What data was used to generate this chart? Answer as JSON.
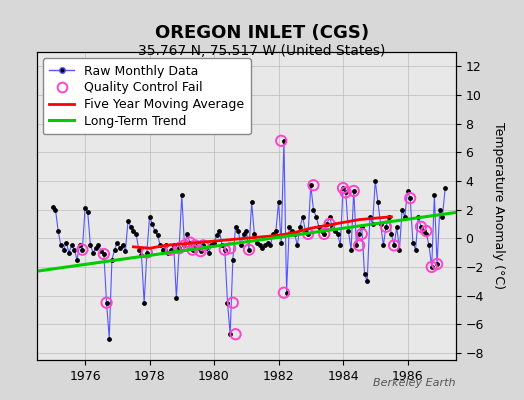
{
  "title": "OREGON INLET (CGS)",
  "subtitle": "35.767 N, 75.517 W (United States)",
  "ylabel_right": "Temperature Anomaly (°C)",
  "xlabel_bottom": "",
  "watermark": "Berkeley Earth",
  "bg_color": "#d8d8d8",
  "plot_bg_color": "#e8e8e8",
  "ylim": [
    -8.5,
    13
  ],
  "yticks": [
    -8,
    -6,
    -4,
    -2,
    0,
    2,
    4,
    6,
    8,
    10,
    12
  ],
  "xlim_start": 1974.5,
  "xlim_end": 1987.5,
  "xticks": [
    1976,
    1978,
    1980,
    1982,
    1984,
    1986
  ],
  "raw_x": [
    1975.0,
    1975.083,
    1975.167,
    1975.25,
    1975.333,
    1975.417,
    1975.5,
    1975.583,
    1975.667,
    1975.75,
    1975.833,
    1975.917,
    1976.0,
    1976.083,
    1976.167,
    1976.25,
    1976.333,
    1976.417,
    1976.5,
    1976.583,
    1976.667,
    1976.75,
    1976.833,
    1976.917,
    1977.0,
    1977.083,
    1977.167,
    1977.25,
    1977.333,
    1977.417,
    1977.5,
    1977.583,
    1977.667,
    1977.75,
    1977.833,
    1977.917,
    1978.0,
    1978.083,
    1978.167,
    1978.25,
    1978.333,
    1978.417,
    1978.5,
    1978.583,
    1978.667,
    1978.75,
    1978.833,
    1978.917,
    1979.0,
    1979.083,
    1979.167,
    1979.25,
    1979.333,
    1979.417,
    1979.5,
    1979.583,
    1979.667,
    1979.75,
    1979.833,
    1979.917,
    1980.0,
    1980.083,
    1980.167,
    1980.25,
    1980.333,
    1980.417,
    1980.5,
    1980.583,
    1980.667,
    1980.75,
    1980.833,
    1980.917,
    1981.0,
    1981.083,
    1981.167,
    1981.25,
    1981.333,
    1981.417,
    1981.5,
    1981.583,
    1981.667,
    1981.75,
    1981.833,
    1981.917,
    1982.0,
    1982.083,
    1982.167,
    1982.25,
    1982.333,
    1982.417,
    1982.5,
    1982.583,
    1982.667,
    1982.75,
    1982.833,
    1982.917,
    1983.0,
    1983.083,
    1983.167,
    1983.25,
    1983.333,
    1983.417,
    1983.5,
    1983.583,
    1983.667,
    1983.75,
    1983.833,
    1983.917,
    1984.0,
    1984.083,
    1984.167,
    1984.25,
    1984.333,
    1984.417,
    1984.5,
    1984.583,
    1984.667,
    1984.75,
    1984.833,
    1984.917,
    1985.0,
    1985.083,
    1985.167,
    1985.25,
    1985.333,
    1985.417,
    1985.5,
    1985.583,
    1985.667,
    1985.75,
    1985.833,
    1985.917,
    1986.0,
    1986.083,
    1986.167,
    1986.25,
    1986.333,
    1986.417,
    1986.5,
    1986.583,
    1986.667,
    1986.75,
    1986.833,
    1986.917,
    1987.0,
    1987.083,
    1987.167
  ],
  "raw_y": [
    2.2,
    2.0,
    0.5,
    -0.5,
    -0.8,
    -0.3,
    -1.0,
    -0.5,
    -0.8,
    -1.5,
    -0.5,
    -0.8,
    2.1,
    1.8,
    -0.5,
    -1.0,
    -0.7,
    -0.5,
    -0.9,
    -1.1,
    -4.5,
    -7.0,
    -1.5,
    -0.8,
    -0.3,
    -0.7,
    -0.5,
    -0.9,
    1.2,
    0.8,
    0.5,
    0.3,
    -0.8,
    -1.2,
    -4.5,
    -1.0,
    1.5,
    1.0,
    0.5,
    0.2,
    -0.5,
    -0.8,
    -0.5,
    -1.0,
    -0.8,
    -0.5,
    -4.2,
    -0.7,
    3.0,
    -0.5,
    0.3,
    -0.3,
    -0.8,
    -0.5,
    -0.7,
    -0.9,
    -0.5,
    -0.7,
    -1.0,
    -0.5,
    -0.3,
    0.2,
    0.5,
    -0.5,
    -0.8,
    -4.5,
    -6.7,
    -1.5,
    0.8,
    0.5,
    -0.5,
    0.3,
    0.5,
    -0.8,
    2.5,
    0.3,
    -0.3,
    -0.5,
    -0.7,
    -0.5,
    -0.3,
    -0.5,
    0.3,
    0.5,
    2.5,
    -0.3,
    6.8,
    -3.8,
    0.8,
    0.5,
    0.3,
    -0.5,
    0.8,
    1.5,
    0.5,
    0.3,
    3.7,
    2.0,
    1.5,
    0.8,
    0.5,
    0.3,
    1.0,
    1.5,
    0.8,
    0.5,
    0.3,
    -0.5,
    3.5,
    3.2,
    0.5,
    -0.8,
    3.3,
    -0.5,
    0.3,
    0.8,
    -2.5,
    -3.0,
    1.5,
    1.0,
    4.0,
    2.5,
    1.0,
    -0.5,
    0.8,
    1.5,
    0.3,
    -0.5,
    0.8,
    -0.8,
    2.0,
    1.5,
    3.3,
    2.8,
    -0.3,
    -0.8,
    1.5,
    0.8,
    0.5,
    0.3,
    -0.5,
    -2.0,
    3.0,
    -1.8,
    2.0,
    1.5,
    3.5
  ],
  "qc_fail_x": [
    1975.917,
    1976.583,
    1976.667,
    1977.917,
    1978.667,
    1978.917,
    1979.083,
    1979.25,
    1979.333,
    1979.417,
    1979.583,
    1979.667,
    1980.333,
    1980.5,
    1980.583,
    1980.667,
    1981.083,
    1982.083,
    1982.167,
    1982.917,
    1983.083,
    1983.417,
    1983.583,
    1984.0,
    1984.083,
    1984.333,
    1984.5,
    1984.583,
    1985.333,
    1985.583,
    1986.083,
    1986.417,
    1986.583,
    1986.75,
    1986.917
  ],
  "qc_fail_y": [
    -0.8,
    -1.1,
    -4.5,
    -1.0,
    -0.8,
    -0.7,
    -0.5,
    -0.3,
    -0.8,
    -0.5,
    -0.9,
    -0.5,
    -0.8,
    -0.7,
    -4.5,
    -6.7,
    -0.8,
    6.8,
    -3.8,
    0.3,
    3.7,
    0.3,
    1.0,
    3.5,
    3.2,
    3.3,
    -0.5,
    0.3,
    0.8,
    -0.5,
    2.8,
    0.8,
    0.5,
    -2.0,
    -1.8
  ],
  "trend_x": [
    1974.5,
    1987.5
  ],
  "trend_y": [
    -2.3,
    1.8
  ],
  "mavg_x": [
    1977.5,
    1978.0,
    1978.5,
    1979.0,
    1979.5,
    1980.0,
    1980.5,
    1981.0,
    1981.5,
    1982.0,
    1982.5,
    1983.0,
    1983.5,
    1984.0,
    1984.5,
    1985.0,
    1985.5
  ],
  "mavg_y": [
    -0.6,
    -0.7,
    -0.5,
    -0.4,
    -0.3,
    -0.2,
    -0.1,
    0.0,
    0.1,
    0.2,
    0.4,
    0.7,
    0.9,
    1.1,
    1.3,
    1.4,
    1.5
  ],
  "raw_line_color": "#5555ff",
  "raw_dot_color": "#000000",
  "qc_color": "#ff44cc",
  "mavg_color": "#ff0000",
  "trend_color": "#00cc00",
  "grid_color": "#aaaaaa",
  "title_fontsize": 13,
  "subtitle_fontsize": 10,
  "tick_fontsize": 9,
  "legend_fontsize": 9
}
